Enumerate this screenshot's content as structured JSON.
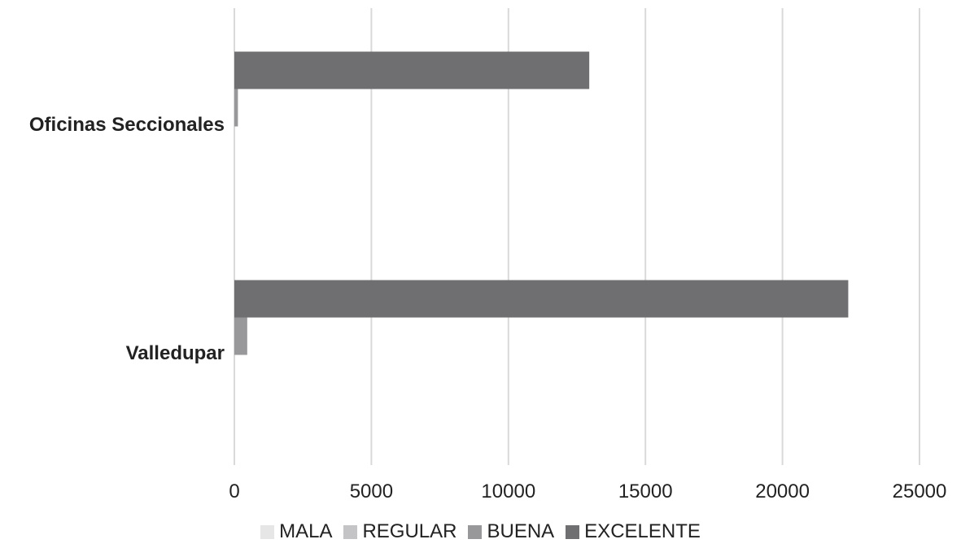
{
  "chart_data": {
    "type": "bar",
    "orientation": "horizontal",
    "categories": [
      "Oficinas Seccionales",
      "Valledupar"
    ],
    "series": [
      {
        "name": "MALA",
        "values": [
          0,
          0
        ],
        "color": "#e6e6e6"
      },
      {
        "name": "REGULAR",
        "values": [
          0,
          0
        ],
        "color": "#c4c4c6"
      },
      {
        "name": "BUENA",
        "values": [
          130,
          470
        ],
        "color": "#98989b"
      },
      {
        "name": "EXCELENTE",
        "values": [
          12950,
          22400
        ],
        "color": "#6f6f72"
      }
    ],
    "xlim": [
      0,
      25000
    ],
    "xticks": [
      "0",
      "5000",
      "10000",
      "15000",
      "20000",
      "25000"
    ],
    "grid": true,
    "legend_position": "bottom"
  }
}
